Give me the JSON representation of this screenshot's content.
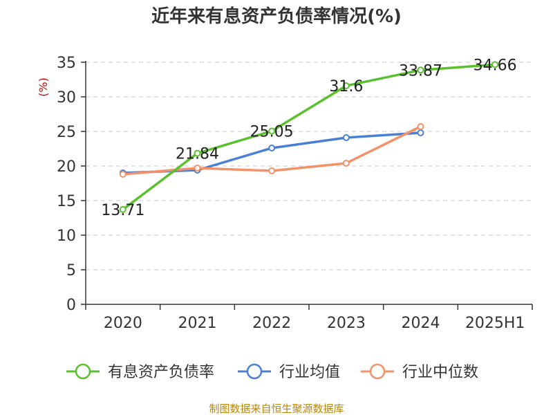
{
  "chart_data": {
    "type": "line",
    "title": "近年来有息资产负债率情况(%)",
    "ylabel": "(%)",
    "xlabel": "",
    "categories": [
      "2020",
      "2021",
      "2022",
      "2023",
      "2024",
      "2025H1"
    ],
    "ylim": [
      0,
      35
    ],
    "yticks": [
      0,
      5,
      10,
      15,
      20,
      25,
      30,
      35
    ],
    "grid": true,
    "legend_position": "bottom",
    "series": [
      {
        "name": "有息资产负债率",
        "color": "#5ac02c",
        "values": [
          13.71,
          21.84,
          25.05,
          31.6,
          33.87,
          34.66
        ],
        "labels": [
          "13.71",
          "21.84",
          "25.05",
          "31.6",
          "33.87",
          "34.66"
        ]
      },
      {
        "name": "行业均值",
        "color": "#4a7fd6",
        "values": [
          19.0,
          19.4,
          22.6,
          24.1,
          24.8,
          null
        ]
      },
      {
        "name": "行业中位数",
        "color": "#f39268",
        "values": [
          18.8,
          19.7,
          19.3,
          20.4,
          25.7,
          null
        ]
      }
    ],
    "source": "制图数据来自恒生聚源数据库"
  }
}
